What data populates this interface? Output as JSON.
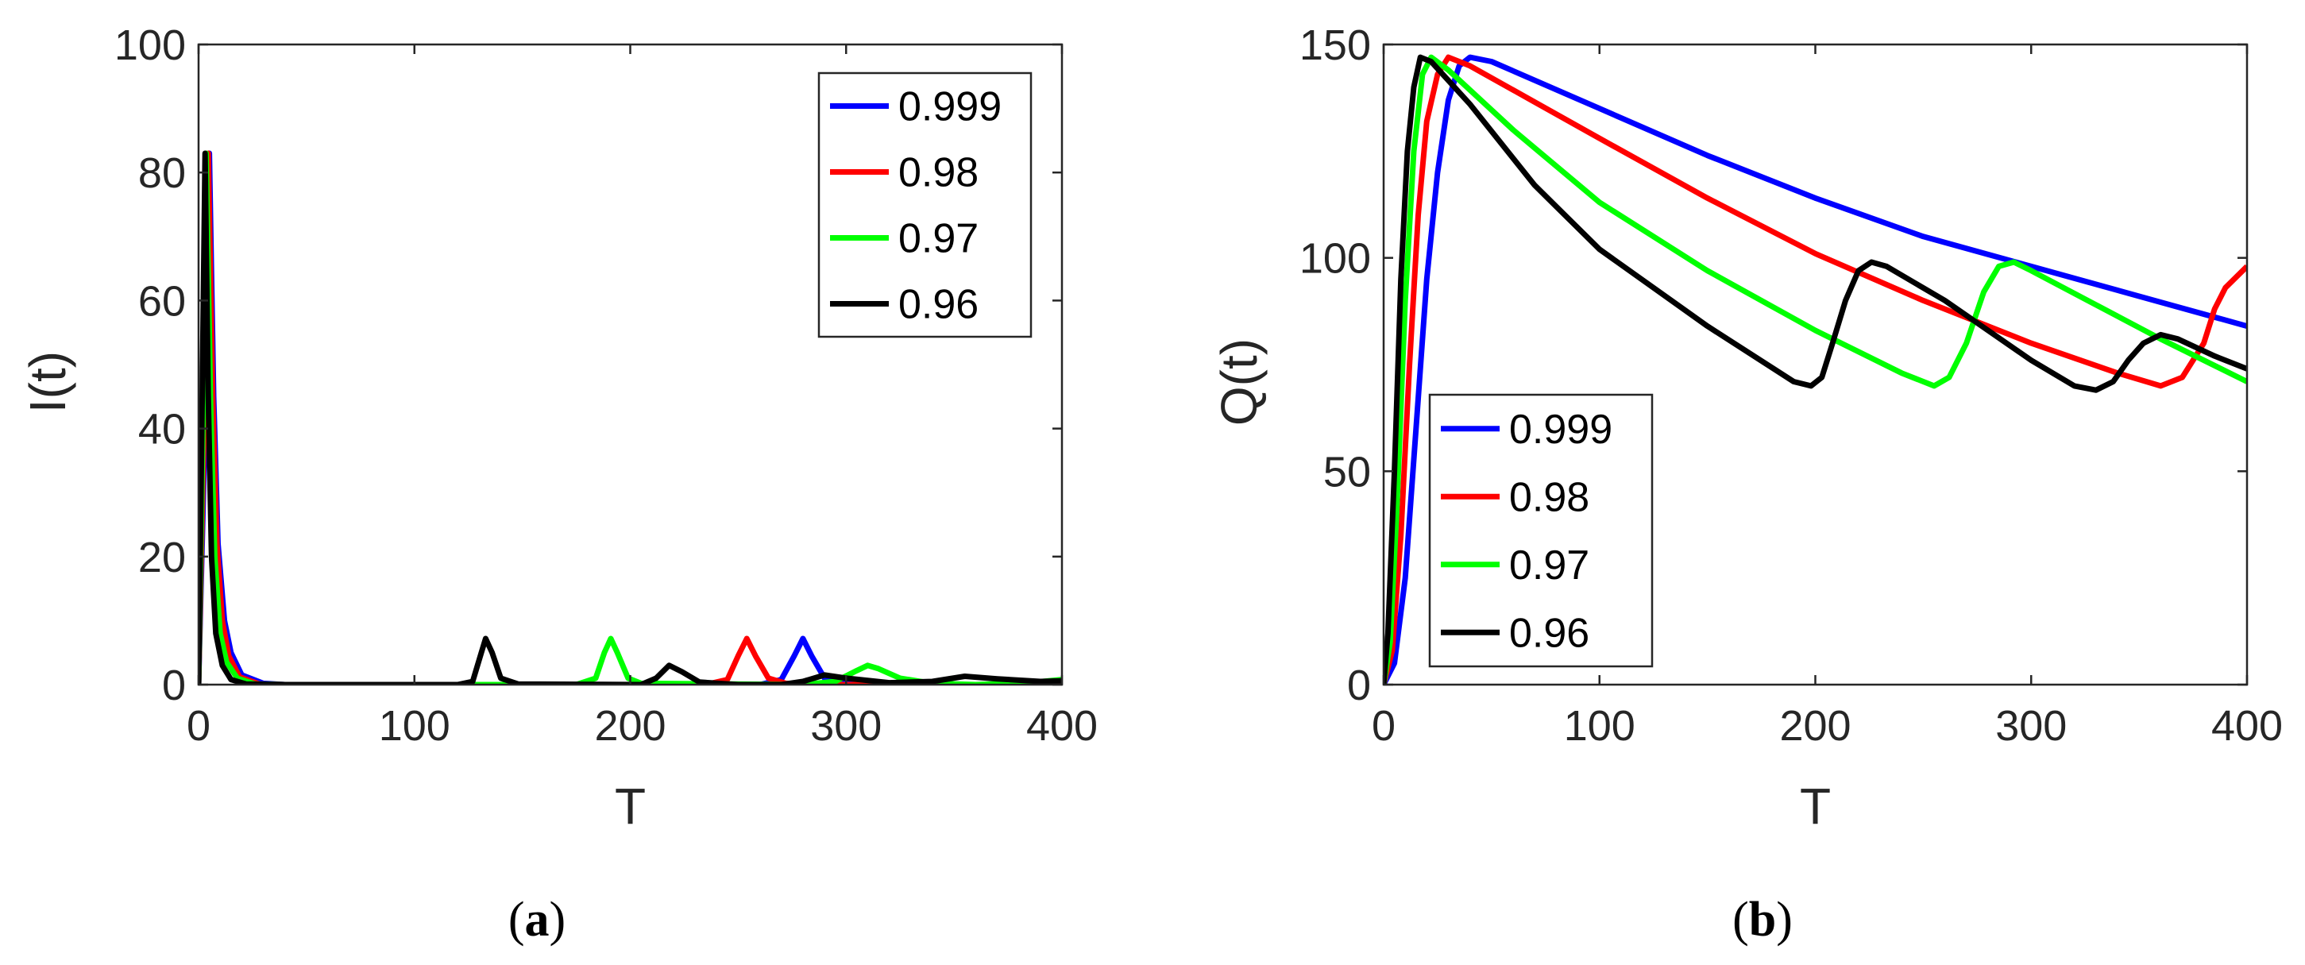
{
  "captions": [
    "a",
    "b"
  ],
  "chart_data": [
    {
      "type": "line",
      "xlabel": "T",
      "ylabel": "I(t)",
      "xlim": [
        0,
        400
      ],
      "ylim": [
        0,
        100
      ],
      "xticks": [
        "0",
        "100",
        "200",
        "300",
        "400"
      ],
      "yticks": [
        "0",
        "20",
        "40",
        "60",
        "80",
        "100"
      ],
      "legend_position": "top-right",
      "series": [
        {
          "name": "0.999",
          "color": "#0000ff",
          "points": [
            [
              0,
              0
            ],
            [
              3,
              40
            ],
            [
              5,
              83
            ],
            [
              7,
              45
            ],
            [
              9,
              22
            ],
            [
              12,
              10
            ],
            [
              15,
              5
            ],
            [
              20,
              1.5
            ],
            [
              30,
              0.2
            ],
            [
              40,
              0
            ],
            [
              260,
              0
            ],
            [
              270,
              0.8
            ],
            [
              276,
              4.5
            ],
            [
              280,
              7.2
            ],
            [
              284,
              4.5
            ],
            [
              290,
              1
            ],
            [
              300,
              0.2
            ],
            [
              340,
              0
            ],
            [
              400,
              0
            ]
          ]
        },
        {
          "name": "0.98",
          "color": "#ff0000",
          "points": [
            [
              0,
              0
            ],
            [
              2.5,
              40
            ],
            [
              4.5,
              83
            ],
            [
              6.5,
              45
            ],
            [
              8.5,
              22
            ],
            [
              11,
              10
            ],
            [
              14,
              4.5
            ],
            [
              19,
              1.2
            ],
            [
              28,
              0.1
            ],
            [
              40,
              0
            ],
            [
              235,
              0
            ],
            [
              245,
              0.8
            ],
            [
              250,
              4.5
            ],
            [
              254,
              7.2
            ],
            [
              258,
              4.5
            ],
            [
              264,
              1
            ],
            [
              272,
              0.2
            ],
            [
              300,
              0
            ],
            [
              400,
              0
            ]
          ]
        },
        {
          "name": "0.97",
          "color": "#00ff00",
          "points": [
            [
              0,
              0
            ],
            [
              2,
              40
            ],
            [
              3.5,
              83
            ],
            [
              5.5,
              45
            ],
            [
              7.5,
              20
            ],
            [
              10,
              8
            ],
            [
              13,
              3.5
            ],
            [
              18,
              1
            ],
            [
              26,
              0.1
            ],
            [
              40,
              0
            ],
            [
              175,
              0
            ],
            [
              184,
              1
            ],
            [
              188,
              5
            ],
            [
              191,
              7.2
            ],
            [
              194,
              5
            ],
            [
              199,
              1
            ],
            [
              205,
              0.2
            ],
            [
              280,
              0
            ],
            [
              295,
              0.5
            ],
            [
              305,
              2.2
            ],
            [
              310,
              3
            ],
            [
              315,
              2.5
            ],
            [
              325,
              1
            ],
            [
              340,
              0.2
            ],
            [
              360,
              0
            ],
            [
              385,
              0.3
            ],
            [
              400,
              0.8
            ]
          ]
        },
        {
          "name": "0.96",
          "color": "#000000",
          "points": [
            [
              0,
              0
            ],
            [
              1.5,
              40
            ],
            [
              3,
              83
            ],
            [
              4.5,
              45
            ],
            [
              6,
              20
            ],
            [
              8,
              8
            ],
            [
              11,
              3
            ],
            [
              15,
              0.8
            ],
            [
              22,
              0.1
            ],
            [
              40,
              0
            ],
            [
              120,
              0
            ],
            [
              127,
              0.5
            ],
            [
              131,
              5
            ],
            [
              133,
              7.2
            ],
            [
              136,
              5
            ],
            [
              140,
              1
            ],
            [
              148,
              0.1
            ],
            [
              205,
              0
            ],
            [
              212,
              1
            ],
            [
              218,
              3
            ],
            [
              224,
              2
            ],
            [
              232,
              0.4
            ],
            [
              250,
              0
            ],
            [
              270,
              0
            ],
            [
              280,
              0.5
            ],
            [
              290,
              1.5
            ],
            [
              300,
              1
            ],
            [
              320,
              0.3
            ],
            [
              340,
              0.5
            ],
            [
              355,
              1.3
            ],
            [
              370,
              0.9
            ],
            [
              390,
              0.5
            ],
            [
              400,
              0.6
            ]
          ]
        }
      ]
    },
    {
      "type": "line",
      "xlabel": "T",
      "ylabel": "Q(t)",
      "xlim": [
        0,
        400
      ],
      "ylim": [
        0,
        150
      ],
      "xticks": [
        "0",
        "100",
        "200",
        "300",
        "400"
      ],
      "yticks": [
        "0",
        "50",
        "100",
        "150"
      ],
      "legend_position": "bottom-left",
      "series": [
        {
          "name": "0.999",
          "color": "#0000ff",
          "points": [
            [
              0,
              0
            ],
            [
              5,
              5
            ],
            [
              10,
              25
            ],
            [
              15,
              60
            ],
            [
              20,
              95
            ],
            [
              25,
              120
            ],
            [
              30,
              137
            ],
            [
              35,
              145
            ],
            [
              40,
              147
            ],
            [
              50,
              146
            ],
            [
              100,
              135
            ],
            [
              150,
              124
            ],
            [
              200,
              114
            ],
            [
              250,
              105
            ],
            [
              300,
              98
            ],
            [
              350,
              91
            ],
            [
              400,
              84
            ]
          ]
        },
        {
          "name": "0.98",
          "color": "#ff0000",
          "points": [
            [
              0,
              0
            ],
            [
              4,
              8
            ],
            [
              8,
              35
            ],
            [
              12,
              75
            ],
            [
              16,
              110
            ],
            [
              20,
              132
            ],
            [
              25,
              143
            ],
            [
              30,
              147
            ],
            [
              40,
              145
            ],
            [
              100,
              128
            ],
            [
              150,
              114
            ],
            [
              200,
              101
            ],
            [
              250,
              90
            ],
            [
              300,
              80
            ],
            [
              340,
              73
            ],
            [
              360,
              70
            ],
            [
              370,
              72
            ],
            [
              380,
              80
            ],
            [
              385,
              88
            ],
            [
              390,
              93
            ],
            [
              400,
              98
            ]
          ]
        },
        {
          "name": "0.97",
          "color": "#00ff00",
          "points": [
            [
              0,
              0
            ],
            [
              3,
              10
            ],
            [
              6,
              40
            ],
            [
              10,
              90
            ],
            [
              14,
              125
            ],
            [
              18,
              143
            ],
            [
              22,
              147
            ],
            [
              30,
              144
            ],
            [
              60,
              130
            ],
            [
              100,
              113
            ],
            [
              150,
              97
            ],
            [
              200,
              83
            ],
            [
              240,
              73
            ],
            [
              255,
              70
            ],
            [
              262,
              72
            ],
            [
              270,
              80
            ],
            [
              278,
              92
            ],
            [
              285,
              98
            ],
            [
              292,
              99
            ],
            [
              300,
              97
            ],
            [
              330,
              89
            ],
            [
              360,
              81
            ],
            [
              400,
              71
            ]
          ]
        },
        {
          "name": "0.96",
          "color": "#000000",
          "points": [
            [
              0,
              0
            ],
            [
              2,
              12
            ],
            [
              5,
              50
            ],
            [
              8,
              95
            ],
            [
              11,
              125
            ],
            [
              14,
              140
            ],
            [
              17,
              147
            ],
            [
              22,
              146
            ],
            [
              40,
              136
            ],
            [
              70,
              117
            ],
            [
              100,
              102
            ],
            [
              150,
              84
            ],
            [
              190,
              71
            ],
            [
              198,
              70
            ],
            [
              203,
              72
            ],
            [
              208,
              80
            ],
            [
              214,
              90
            ],
            [
              220,
              97
            ],
            [
              226,
              99
            ],
            [
              233,
              98
            ],
            [
              260,
              90
            ],
            [
              300,
              76
            ],
            [
              320,
              70
            ],
            [
              330,
              69
            ],
            [
              338,
              71
            ],
            [
              345,
              76
            ],
            [
              352,
              80
            ],
            [
              360,
              82
            ],
            [
              368,
              81
            ],
            [
              385,
              77
            ],
            [
              400,
              74
            ]
          ]
        }
      ]
    }
  ]
}
